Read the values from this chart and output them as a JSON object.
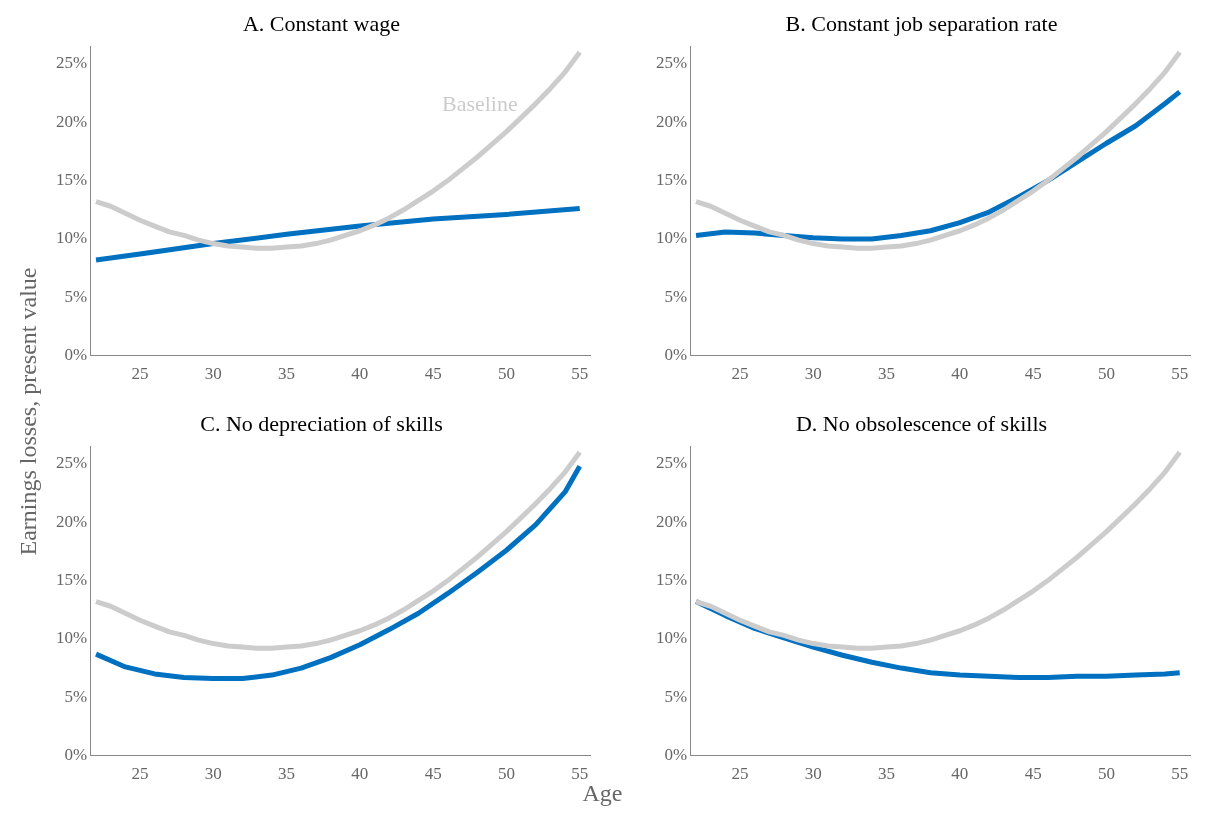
{
  "chart_data": [
    {
      "type": "line",
      "title": "A. Constant wage",
      "ylabel": "Earnings losses, present value",
      "xlim": [
        21.6,
        55.7
      ],
      "xticks": [
        25,
        30,
        35,
        40,
        45,
        50,
        55
      ],
      "ylim": [
        0,
        26.5
      ],
      "yticks": [
        {
          "value": 0,
          "label": "0%"
        },
        {
          "value": 5,
          "label": "5%"
        },
        {
          "value": 10,
          "label": "10%"
        },
        {
          "value": 15,
          "label": "15%"
        },
        {
          "value": 20,
          "label": "20%"
        },
        {
          "value": 25,
          "label": "25%"
        }
      ],
      "grid": false,
      "legend": false,
      "marker": "none",
      "line_style": "solid",
      "series": [
        {
          "name": "Baseline",
          "color": "#cccccc",
          "x": [
            22,
            23,
            24,
            25,
            26,
            27,
            28,
            29,
            30,
            31,
            32,
            33,
            34,
            35,
            36,
            37,
            38,
            39,
            40,
            41,
            42,
            43,
            44,
            45,
            46,
            47,
            48,
            49,
            50,
            51,
            52,
            53,
            54,
            55
          ],
          "values": [
            13.2,
            12.8,
            12.2,
            11.6,
            11.1,
            10.6,
            10.3,
            9.9,
            9.6,
            9.4,
            9.3,
            9.2,
            9.2,
            9.3,
            9.4,
            9.6,
            9.9,
            10.3,
            10.7,
            11.2,
            11.8,
            12.5,
            13.3,
            14.1,
            15.0,
            16.0,
            17.0,
            18.1,
            19.2,
            20.4,
            21.6,
            22.9,
            24.3,
            26.0
          ]
        },
        {
          "color": "#0070c0",
          "x": [
            22,
            25,
            30,
            35,
            40,
            45,
            50,
            55
          ],
          "values": [
            8.2,
            8.7,
            9.6,
            10.4,
            11.1,
            11.7,
            12.1,
            12.6
          ]
        }
      ]
    },
    {
      "type": "line",
      "title": "B. Constant job separation rate",
      "xlim": [
        21.6,
        55.7
      ],
      "xticks": [
        25,
        30,
        35,
        40,
        45,
        50,
        55
      ],
      "ylim": [
        0,
        26.5
      ],
      "yticks": [
        {
          "value": 0,
          "label": "0%"
        },
        {
          "value": 5,
          "label": "5%"
        },
        {
          "value": 10,
          "label": "10%"
        },
        {
          "value": 15,
          "label": "15%"
        },
        {
          "value": 20,
          "label": "20%"
        },
        {
          "value": 25,
          "label": "25%"
        }
      ],
      "grid": false,
      "legend": false,
      "marker": "none",
      "line_style": "solid",
      "series": [
        {
          "color": "#cccccc",
          "x": [
            22,
            23,
            24,
            25,
            26,
            27,
            28,
            29,
            30,
            31,
            32,
            33,
            34,
            35,
            36,
            37,
            38,
            39,
            40,
            41,
            42,
            43,
            44,
            45,
            46,
            47,
            48,
            49,
            50,
            51,
            52,
            53,
            54,
            55
          ],
          "values": [
            13.2,
            12.8,
            12.2,
            11.6,
            11.1,
            10.6,
            10.3,
            9.9,
            9.6,
            9.4,
            9.3,
            9.2,
            9.2,
            9.3,
            9.4,
            9.6,
            9.9,
            10.3,
            10.7,
            11.2,
            11.8,
            12.5,
            13.3,
            14.1,
            15.0,
            16.0,
            17.0,
            18.1,
            19.2,
            20.4,
            21.6,
            22.9,
            24.3,
            26.0
          ]
        },
        {
          "color": "#0070c0",
          "x": [
            22,
            24,
            26,
            28,
            30,
            32,
            34,
            36,
            38,
            40,
            42,
            44,
            46,
            48,
            50,
            52,
            54,
            55
          ],
          "values": [
            10.3,
            10.6,
            10.5,
            10.3,
            10.1,
            10.0,
            10.0,
            10.3,
            10.7,
            11.4,
            12.3,
            13.6,
            15.0,
            16.6,
            18.2,
            19.7,
            21.6,
            22.6
          ]
        }
      ]
    },
    {
      "type": "line",
      "title": "C. No depreciation of skills",
      "xlabel": "Age",
      "xlim": [
        21.6,
        55.7
      ],
      "xticks": [
        25,
        30,
        35,
        40,
        45,
        50,
        55
      ],
      "ylim": [
        0,
        26.5
      ],
      "yticks": [
        {
          "value": 0,
          "label": "0%"
        },
        {
          "value": 5,
          "label": "5%"
        },
        {
          "value": 10,
          "label": "10%"
        },
        {
          "value": 15,
          "label": "15%"
        },
        {
          "value": 20,
          "label": "20%"
        },
        {
          "value": 25,
          "label": "25%"
        }
      ],
      "grid": false,
      "legend": false,
      "marker": "none",
      "line_style": "solid",
      "series": [
        {
          "color": "#cccccc",
          "x": [
            22,
            23,
            24,
            25,
            26,
            27,
            28,
            29,
            30,
            31,
            32,
            33,
            34,
            35,
            36,
            37,
            38,
            39,
            40,
            41,
            42,
            43,
            44,
            45,
            46,
            47,
            48,
            49,
            50,
            51,
            52,
            53,
            54,
            55
          ],
          "values": [
            13.2,
            12.8,
            12.2,
            11.6,
            11.1,
            10.6,
            10.3,
            9.9,
            9.6,
            9.4,
            9.3,
            9.2,
            9.2,
            9.3,
            9.4,
            9.6,
            9.9,
            10.3,
            10.7,
            11.2,
            11.8,
            12.5,
            13.3,
            14.1,
            15.0,
            16.0,
            17.0,
            18.1,
            19.2,
            20.4,
            21.6,
            22.9,
            24.3,
            26.0
          ]
        },
        {
          "color": "#0070c0",
          "x": [
            22,
            24,
            26,
            28,
            30,
            32,
            34,
            36,
            38,
            40,
            42,
            44,
            46,
            48,
            50,
            52,
            54,
            55
          ],
          "values": [
            8.7,
            7.6,
            7.0,
            6.7,
            6.6,
            6.6,
            6.9,
            7.5,
            8.4,
            9.5,
            10.8,
            12.2,
            13.9,
            15.7,
            17.6,
            19.8,
            22.6,
            24.8
          ]
        }
      ]
    },
    {
      "type": "line",
      "title": "D. No obsolescence of skills",
      "xlim": [
        21.6,
        55.7
      ],
      "xticks": [
        25,
        30,
        35,
        40,
        45,
        50,
        55
      ],
      "ylim": [
        0,
        26.5
      ],
      "yticks": [
        {
          "value": 0,
          "label": "0%"
        },
        {
          "value": 5,
          "label": "5%"
        },
        {
          "value": 10,
          "label": "10%"
        },
        {
          "value": 15,
          "label": "15%"
        },
        {
          "value": 20,
          "label": "20%"
        },
        {
          "value": 25,
          "label": "25%"
        }
      ],
      "grid": false,
      "legend": false,
      "marker": "none",
      "line_style": "solid",
      "series": [
        {
          "color": "#cccccc",
          "x": [
            22,
            23,
            24,
            25,
            26,
            27,
            28,
            29,
            30,
            31,
            32,
            33,
            34,
            35,
            36,
            37,
            38,
            39,
            40,
            41,
            42,
            43,
            44,
            45,
            46,
            47,
            48,
            49,
            50,
            51,
            52,
            53,
            54,
            55
          ],
          "values": [
            13.2,
            12.8,
            12.2,
            11.6,
            11.1,
            10.6,
            10.3,
            9.9,
            9.6,
            9.4,
            9.3,
            9.2,
            9.2,
            9.3,
            9.4,
            9.6,
            9.9,
            10.3,
            10.7,
            11.2,
            11.8,
            12.5,
            13.3,
            14.1,
            15.0,
            16.0,
            17.0,
            18.1,
            19.2,
            20.4,
            21.6,
            22.9,
            24.3,
            26.0
          ]
        },
        {
          "color": "#0070c0",
          "x": [
            22,
            24,
            26,
            28,
            30,
            32,
            34,
            36,
            38,
            40,
            42,
            44,
            46,
            48,
            50,
            52,
            54,
            55
          ],
          "values": [
            13.2,
            12.0,
            10.9,
            10.1,
            9.3,
            8.6,
            8.0,
            7.5,
            7.1,
            6.9,
            6.8,
            6.7,
            6.7,
            6.8,
            6.8,
            6.9,
            7.0,
            7.1
          ]
        }
      ]
    }
  ]
}
